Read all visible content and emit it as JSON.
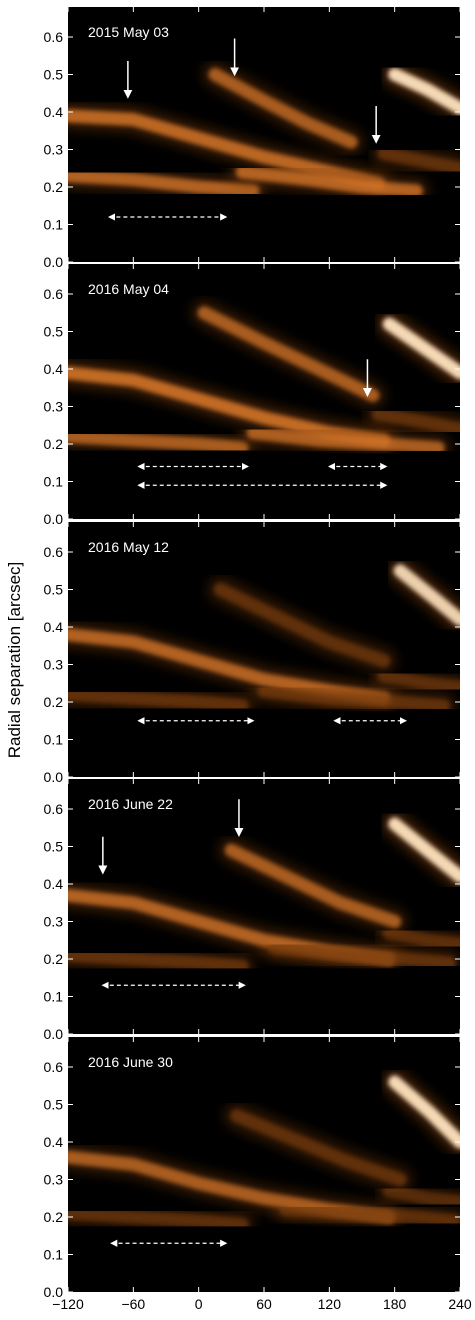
{
  "figure": {
    "ylabel": "Radial separation [arcsec]",
    "x_tick_labels": [
      "−120",
      "−60",
      "0",
      "60",
      "120",
      "180",
      "240"
    ],
    "y_tick_labels": [
      "0.0",
      "0.1",
      "0.2",
      "0.3",
      "0.4",
      "0.5",
      "0.6"
    ]
  },
  "colors": {
    "background": "#000000",
    "emission_dim": "#7a3d0e",
    "emission_mid": "#d9782a",
    "emission_bright": "#ffe3bf",
    "annotation": "#ffffff"
  },
  "chart_data": [
    {
      "type": "heatmap",
      "title": "2015 May 03",
      "xlim": [
        -120,
        240
      ],
      "ylim": [
        0.0,
        0.68
      ],
      "x_ticks": [
        -120,
        -60,
        0,
        60,
        120,
        180,
        240
      ],
      "y_ticks": [
        0.0,
        0.1,
        0.2,
        0.3,
        0.4,
        0.5,
        0.6
      ],
      "ridges": [
        {
          "x": [
            -120,
            -60,
            0,
            60,
            120,
            165
          ],
          "y": [
            0.39,
            0.38,
            0.33,
            0.28,
            0.24,
            0.21
          ],
          "intensity": 0.85
        },
        {
          "x": [
            -120,
            -60,
            0,
            50
          ],
          "y": [
            0.23,
            0.22,
            0.2,
            0.19
          ],
          "intensity": 0.8
        },
        {
          "x": [
            15,
            60,
            100,
            140
          ],
          "y": [
            0.5,
            0.43,
            0.37,
            0.32
          ],
          "intensity": 0.75
        },
        {
          "x": [
            40,
            100,
            150,
            200
          ],
          "y": [
            0.24,
            0.22,
            0.2,
            0.19
          ],
          "intensity": 0.8
        },
        {
          "x": [
            180,
            210,
            240
          ],
          "y": [
            0.5,
            0.46,
            0.41
          ],
          "intensity": 1.0
        },
        {
          "x": [
            170,
            205,
            240
          ],
          "y": [
            0.29,
            0.27,
            0.25
          ],
          "intensity": 0.7
        }
      ],
      "arrows_down": [
        {
          "x": -65,
          "y": 0.44
        },
        {
          "x": 33,
          "y": 0.5
        },
        {
          "x": 163,
          "y": 0.32
        }
      ],
      "spans": [
        {
          "x": [
            -82,
            25
          ],
          "y": 0.12
        }
      ]
    },
    {
      "type": "heatmap",
      "title": "2016 May 04",
      "xlim": [
        -120,
        240
      ],
      "ylim": [
        0.0,
        0.68
      ],
      "x_ticks": [
        -120,
        -60,
        0,
        60,
        120,
        180,
        240
      ],
      "y_ticks": [
        0.0,
        0.1,
        0.2,
        0.3,
        0.4,
        0.5,
        0.6
      ],
      "ridges": [
        {
          "x": [
            -120,
            -60,
            0,
            60,
            120,
            170
          ],
          "y": [
            0.39,
            0.37,
            0.32,
            0.27,
            0.23,
            0.21
          ],
          "intensity": 0.9
        },
        {
          "x": [
            -120,
            -60,
            0,
            40
          ],
          "y": [
            0.22,
            0.21,
            0.2,
            0.19
          ],
          "intensity": 0.75
        },
        {
          "x": [
            5,
            60,
            110,
            160
          ],
          "y": [
            0.55,
            0.47,
            0.4,
            0.33
          ],
          "intensity": 0.75
        },
        {
          "x": [
            50,
            110,
            170,
            220
          ],
          "y": [
            0.23,
            0.21,
            0.2,
            0.19
          ],
          "intensity": 0.75
        },
        {
          "x": [
            175,
            205,
            240
          ],
          "y": [
            0.52,
            0.46,
            0.39
          ],
          "intensity": 1.0
        },
        {
          "x": [
            165,
            205,
            240
          ],
          "y": [
            0.28,
            0.26,
            0.24
          ],
          "intensity": 0.7
        }
      ],
      "arrows_down": [
        {
          "x": 155,
          "y": 0.33
        }
      ],
      "spans": [
        {
          "x": [
            -55,
            45
          ],
          "y": 0.14
        },
        {
          "x": [
            120,
            172
          ],
          "y": 0.14
        },
        {
          "x": [
            -55,
            172
          ],
          "y": 0.09
        }
      ]
    },
    {
      "type": "heatmap",
      "title": "2016 May 12",
      "xlim": [
        -120,
        240
      ],
      "ylim": [
        0.0,
        0.68
      ],
      "x_ticks": [
        -120,
        -60,
        0,
        60,
        120,
        180,
        240
      ],
      "y_ticks": [
        0.0,
        0.1,
        0.2,
        0.3,
        0.4,
        0.5,
        0.6
      ],
      "ridges": [
        {
          "x": [
            -120,
            -60,
            0,
            60,
            120,
            170
          ],
          "y": [
            0.38,
            0.36,
            0.31,
            0.26,
            0.23,
            0.21
          ],
          "intensity": 0.8
        },
        {
          "x": [
            -120,
            -60,
            0,
            40
          ],
          "y": [
            0.22,
            0.21,
            0.2,
            0.19
          ],
          "intensity": 0.7
        },
        {
          "x": [
            20,
            70,
            120,
            170
          ],
          "y": [
            0.5,
            0.43,
            0.36,
            0.31
          ],
          "intensity": 0.7
        },
        {
          "x": [
            60,
            120,
            180,
            225
          ],
          "y": [
            0.23,
            0.21,
            0.2,
            0.19
          ],
          "intensity": 0.7
        },
        {
          "x": [
            185,
            215,
            240
          ],
          "y": [
            0.55,
            0.48,
            0.42
          ],
          "intensity": 0.95
        },
        {
          "x": [
            170,
            210,
            240
          ],
          "y": [
            0.27,
            0.25,
            0.24
          ],
          "intensity": 0.65
        }
      ],
      "arrows_down": [],
      "spans": [
        {
          "x": [
            -55,
            50
          ],
          "y": 0.15
        },
        {
          "x": [
            125,
            190
          ],
          "y": 0.15
        }
      ]
    },
    {
      "type": "heatmap",
      "title": "2016 June 22",
      "xlim": [
        -120,
        240
      ],
      "ylim": [
        0.0,
        0.68
      ],
      "x_ticks": [
        -120,
        -60,
        0,
        60,
        120,
        180,
        240
      ],
      "y_ticks": [
        0.0,
        0.1,
        0.2,
        0.3,
        0.4,
        0.5,
        0.6
      ],
      "ridges": [
        {
          "x": [
            -120,
            -60,
            0,
            60,
            120,
            175
          ],
          "y": [
            0.37,
            0.35,
            0.3,
            0.25,
            0.22,
            0.2
          ],
          "intensity": 0.8
        },
        {
          "x": [
            -120,
            -60,
            0,
            40
          ],
          "y": [
            0.21,
            0.2,
            0.19,
            0.18
          ],
          "intensity": 0.7
        },
        {
          "x": [
            30,
            80,
            130,
            180
          ],
          "y": [
            0.49,
            0.42,
            0.35,
            0.3
          ],
          "intensity": 0.75
        },
        {
          "x": [
            70,
            130,
            190,
            230
          ],
          "y": [
            0.23,
            0.21,
            0.2,
            0.19
          ],
          "intensity": 0.7
        },
        {
          "x": [
            180,
            210,
            240
          ],
          "y": [
            0.56,
            0.49,
            0.42
          ],
          "intensity": 1.0
        },
        {
          "x": [
            175,
            210,
            240
          ],
          "y": [
            0.27,
            0.25,
            0.24
          ],
          "intensity": 0.65
        }
      ],
      "arrows_down": [
        {
          "x": -88,
          "y": 0.43
        },
        {
          "x": 37,
          "y": 0.53
        }
      ],
      "spans": [
        {
          "x": [
            -88,
            42
          ],
          "y": 0.13
        }
      ]
    },
    {
      "type": "heatmap",
      "title": "2016 June 30",
      "xlim": [
        -120,
        240
      ],
      "ylim": [
        0.0,
        0.68
      ],
      "x_ticks": [
        -120,
        -60,
        0,
        60,
        120,
        180,
        240
      ],
      "y_ticks": [
        0.0,
        0.1,
        0.2,
        0.3,
        0.4,
        0.5,
        0.6
      ],
      "ridges": [
        {
          "x": [
            -120,
            -60,
            0,
            60,
            120,
            175
          ],
          "y": [
            0.36,
            0.34,
            0.29,
            0.25,
            0.22,
            0.2
          ],
          "intensity": 0.75
        },
        {
          "x": [
            -120,
            -60,
            0,
            40
          ],
          "y": [
            0.21,
            0.2,
            0.19,
            0.18
          ],
          "intensity": 0.65
        },
        {
          "x": [
            35,
            85,
            135,
            185
          ],
          "y": [
            0.47,
            0.41,
            0.35,
            0.3
          ],
          "intensity": 0.7
        },
        {
          "x": [
            80,
            140,
            200,
            235
          ],
          "y": [
            0.22,
            0.21,
            0.2,
            0.19
          ],
          "intensity": 0.65
        },
        {
          "x": [
            180,
            212,
            240
          ],
          "y": [
            0.56,
            0.48,
            0.4
          ],
          "intensity": 1.0
        },
        {
          "x": [
            175,
            210,
            240
          ],
          "y": [
            0.27,
            0.25,
            0.24
          ],
          "intensity": 0.6
        }
      ],
      "arrows_down": [],
      "spans": [
        {
          "x": [
            -80,
            25
          ],
          "y": 0.13
        }
      ]
    }
  ]
}
